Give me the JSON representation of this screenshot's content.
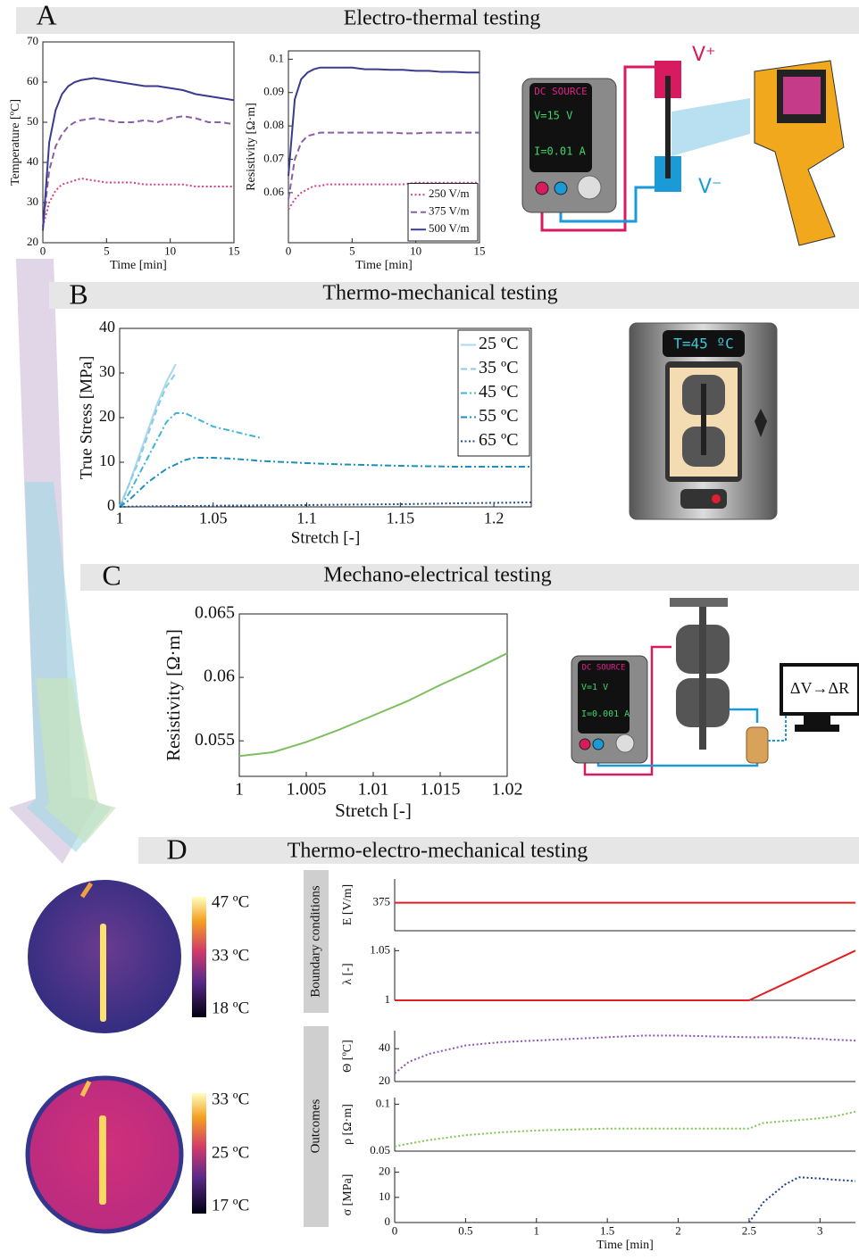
{
  "sections": [
    {
      "letter": "A",
      "title": "Electro-thermal testing"
    },
    {
      "letter": "B",
      "title": "Thermo-mechanical testing"
    },
    {
      "letter": "C",
      "title": "Mechano-electrical testing"
    },
    {
      "letter": "D",
      "title": "Thermo-electro-mechanical testing"
    }
  ],
  "illustrations": {
    "a_source": {
      "label": "DC SOURCE",
      "voltage": "V=15 V",
      "current": "I=0.01 A"
    },
    "a_terminals": [
      "V⁺",
      "V⁻"
    ],
    "b_chamber": "T=45 ºC",
    "c_source": {
      "label": "DC SOURCE",
      "voltage": "V=1 V",
      "current": "I=0.001 A"
    },
    "c_monitor": "ΔV→ΔR",
    "d_colorbars": [
      [
        "47 ºC",
        "33 ºC",
        "18 ºC"
      ],
      [
        "33 ºC",
        "25 ºC",
        "17 ºC"
      ]
    ],
    "d_groups": [
      "Boundary conditions",
      "Outcomes"
    ]
  },
  "chart_data": [
    {
      "type": "line",
      "xlabel": "Time [min]",
      "ylabel": "Temperature [ºC]",
      "x": [
        0,
        0.5,
        1,
        1.5,
        2,
        2.5,
        3,
        4,
        5,
        6,
        7,
        8,
        9,
        10,
        11,
        12,
        13,
        14,
        15
      ],
      "xlim": [
        0,
        15
      ],
      "xticks": [
        0,
        5,
        10,
        15
      ],
      "ylim": [
        20,
        70
      ],
      "yticks": [
        20,
        30,
        40,
        50,
        60,
        70
      ],
      "series": [
        {
          "color": "#d6408a",
          "style": "dotted",
          "values": [
            24,
            30,
            33,
            34.5,
            35,
            35.5,
            36,
            35.5,
            35,
            35,
            35,
            34.5,
            34.5,
            34.5,
            34.5,
            34,
            34,
            34,
            34
          ]
        },
        {
          "color": "#8a5fa8",
          "style": "dashed",
          "values": [
            24,
            38,
            44,
            47,
            49,
            50,
            50.5,
            51,
            50.5,
            50,
            50,
            50.5,
            50,
            51,
            51.5,
            51,
            50,
            50,
            49.5
          ]
        },
        {
          "color": "#3b3a8f",
          "style": "solid",
          "values": [
            23,
            45,
            53,
            57,
            59,
            60,
            60.5,
            61,
            60.5,
            60,
            59.5,
            59,
            59,
            58.5,
            58,
            57,
            56.5,
            56,
            55.5
          ]
        }
      ]
    },
    {
      "type": "line",
      "xlabel": "Time [min]",
      "ylabel": "Resistivity [Ω·m]",
      "legend": "lower right",
      "x": [
        0,
        0.5,
        1,
        1.5,
        2,
        2.5,
        3,
        4,
        5,
        6,
        7,
        8,
        9,
        10,
        11,
        12,
        13,
        14,
        15
      ],
      "xlim": [
        0,
        15
      ],
      "xticks": [
        0,
        5,
        10,
        15
      ],
      "ylim": [
        0.045,
        0.1025
      ],
      "yticks": [
        0.06,
        0.07,
        0.08,
        0.09,
        0.1
      ],
      "series": [
        {
          "name": "250 V/m",
          "color": "#d6408a",
          "style": "dotted",
          "values": [
            0.055,
            0.058,
            0.06,
            0.061,
            0.062,
            0.062,
            0.0625,
            0.0625,
            0.0625,
            0.0625,
            0.0625,
            0.0625,
            0.0625,
            0.063,
            0.063,
            0.063,
            0.063,
            0.063,
            0.063
          ]
        },
        {
          "name": "375 V/m",
          "color": "#8a5fa8",
          "style": "dashed",
          "values": [
            0.058,
            0.07,
            0.075,
            0.077,
            0.0775,
            0.078,
            0.078,
            0.078,
            0.078,
            0.078,
            0.078,
            0.078,
            0.0778,
            0.0778,
            0.078,
            0.078,
            0.078,
            0.078,
            0.078
          ]
        },
        {
          "name": "500 V/m",
          "color": "#3b3a8f",
          "style": "solid",
          "values": [
            0.065,
            0.088,
            0.094,
            0.096,
            0.097,
            0.0975,
            0.0975,
            0.0975,
            0.0975,
            0.097,
            0.097,
            0.0968,
            0.0968,
            0.0965,
            0.0965,
            0.0962,
            0.0962,
            0.096,
            0.096
          ]
        }
      ]
    },
    {
      "type": "line",
      "xlabel": "Stretch [-]",
      "ylabel": "True Stress [MPa]",
      "legend": "upper right",
      "x": [
        1,
        1.005,
        1.01,
        1.015,
        1.02,
        1.025,
        1.03,
        1.035,
        1.04,
        1.05,
        1.06,
        1.07,
        1.075,
        1.08,
        1.1,
        1.12,
        1.15,
        1.18,
        1.2,
        1.22
      ],
      "xlim": [
        1,
        1.22
      ],
      "xticks": [
        1,
        1.05,
        1.1,
        1.15,
        1.2
      ],
      "ylim": [
        0,
        40
      ],
      "yticks": [
        0,
        10,
        20,
        30,
        40
      ],
      "series": [
        {
          "name": "25 ºC",
          "color": "#a9d9ec",
          "style": "solid",
          "values": [
            0,
            5,
            11,
            17,
            23,
            28,
            32,
            null,
            null,
            null,
            null,
            null,
            null,
            null,
            null,
            null,
            null,
            null,
            null,
            null
          ]
        },
        {
          "name": "35 ºC",
          "color": "#8ccbe3",
          "style": "dashed",
          "values": [
            0,
            5,
            10,
            16,
            22,
            27,
            30,
            null,
            null,
            null,
            null,
            null,
            null,
            null,
            null,
            null,
            null,
            null,
            null,
            null
          ]
        },
        {
          "name": "45 ºC",
          "color": "#41b3d8",
          "style": "dash-dot",
          "values": [
            0,
            3,
            7,
            11,
            15,
            19,
            21,
            21,
            20,
            18,
            17,
            16,
            15.5,
            null,
            null,
            null,
            null,
            null,
            null,
            null
          ]
        },
        {
          "name": "55 ºC",
          "color": "#1d8fc0",
          "style": "dash-dot",
          "values": [
            0,
            1.5,
            3.5,
            5.5,
            7,
            8.5,
            9.5,
            10.5,
            11,
            11,
            10.8,
            10.5,
            10.3,
            10.2,
            9.8,
            9.5,
            9.2,
            9,
            9,
            9
          ]
        },
        {
          "name": "65 ºC",
          "color": "#1f4e8c",
          "style": "dotted",
          "values": [
            0,
            0.05,
            0.1,
            0.1,
            0.15,
            0.15,
            0.2,
            0.2,
            0.2,
            0.25,
            0.3,
            0.3,
            0.35,
            0.35,
            0.4,
            0.5,
            0.6,
            0.8,
            0.9,
            1
          ]
        }
      ]
    },
    {
      "type": "line",
      "xlabel": "Stretch [-]",
      "ylabel": "Resistivity [Ω·m]",
      "x": [
        1,
        1.0025,
        1.005,
        1.0075,
        1.01,
        1.0125,
        1.015,
        1.0175,
        1.02
      ],
      "xlim": [
        1,
        1.02
      ],
      "xticks": [
        1,
        1.005,
        1.01,
        1.015,
        1.02
      ],
      "ylim": [
        0.0522,
        0.065
      ],
      "yticks": [
        0.055,
        0.06,
        0.065
      ],
      "series": [
        {
          "color": "#7dbf5e",
          "style": "solid",
          "values": [
            0.0538,
            0.0541,
            0.0549,
            0.0559,
            0.057,
            0.0581,
            0.0594,
            0.0606,
            0.0619
          ]
        }
      ]
    },
    {
      "type": "line",
      "ylabel": "E [V/m]",
      "x": [
        0,
        3.25
      ],
      "xlim": [
        0,
        3.25
      ],
      "ylim": [
        310,
        430
      ],
      "yticks": [
        375
      ],
      "series": [
        {
          "color": "#e02020",
          "style": "solid",
          "values": [
            375,
            375
          ]
        }
      ]
    },
    {
      "type": "line",
      "ylabel": "λ [-]",
      "x": [
        0,
        2.5,
        3.25
      ],
      "xlim": [
        0,
        3.25
      ],
      "ylim": [
        1,
        1.053
      ],
      "yticks": [
        1,
        1.05
      ],
      "series": [
        {
          "color": "#e02020",
          "style": "solid",
          "values": [
            1,
            1,
            1.05
          ]
        }
      ]
    },
    {
      "type": "line",
      "ylabel": "Θ [ºC]",
      "x": [
        0,
        0.1,
        0.25,
        0.5,
        0.75,
        1,
        1.25,
        1.5,
        1.75,
        2,
        2.25,
        2.5,
        2.6,
        2.75,
        2.85,
        3,
        3.1,
        3.25
      ],
      "xlim": [
        0,
        3.25
      ],
      "ylim": [
        20,
        51
      ],
      "yticks": [
        20,
        40
      ],
      "series": [
        {
          "color": "#8a55b5",
          "style": "dotted",
          "values": [
            25,
            32,
            37,
            42,
            44,
            45,
            46,
            47,
            48,
            48,
            47.5,
            47,
            47,
            47,
            46.5,
            46,
            45.5,
            45
          ]
        }
      ]
    },
    {
      "type": "line",
      "ylabel": "ρ [Ω·m]",
      "x": [
        0,
        0.1,
        0.25,
        0.5,
        0.75,
        1,
        1.25,
        1.5,
        1.75,
        2,
        2.25,
        2.5,
        2.6,
        2.75,
        2.85,
        3,
        3.1,
        3.25
      ],
      "xlim": [
        0,
        3.25
      ],
      "ylim": [
        0.05,
        0.107
      ],
      "yticks": [
        0.05,
        0.1
      ],
      "series": [
        {
          "color": "#7cc74f",
          "style": "dotted",
          "values": [
            0.055,
            0.058,
            0.062,
            0.067,
            0.07,
            0.072,
            0.073,
            0.074,
            0.074,
            0.074,
            0.074,
            0.074,
            0.08,
            0.082,
            0.083,
            0.085,
            0.087,
            0.092
          ]
        }
      ]
    },
    {
      "type": "line",
      "xlabel": "Time [min]",
      "ylabel": "σ [MPa]",
      "x": [
        0,
        0.1,
        0.25,
        0.5,
        0.75,
        1,
        1.25,
        1.5,
        1.75,
        2,
        2.25,
        2.5,
        2.6,
        2.75,
        2.85,
        3,
        3.1,
        3.25
      ],
      "xlim": [
        0,
        3.25
      ],
      "xticks": [
        0,
        0.5,
        1,
        1.5,
        2,
        2.5,
        3
      ],
      "ylim": [
        0,
        22
      ],
      "yticks": [
        0,
        10,
        20
      ],
      "series": [
        {
          "color": "#1f3e8c",
          "style": "dotted",
          "values": [
            null,
            null,
            null,
            null,
            null,
            null,
            null,
            null,
            null,
            null,
            null,
            0,
            8,
            15,
            18,
            17.5,
            17,
            16.5
          ]
        }
      ]
    }
  ]
}
